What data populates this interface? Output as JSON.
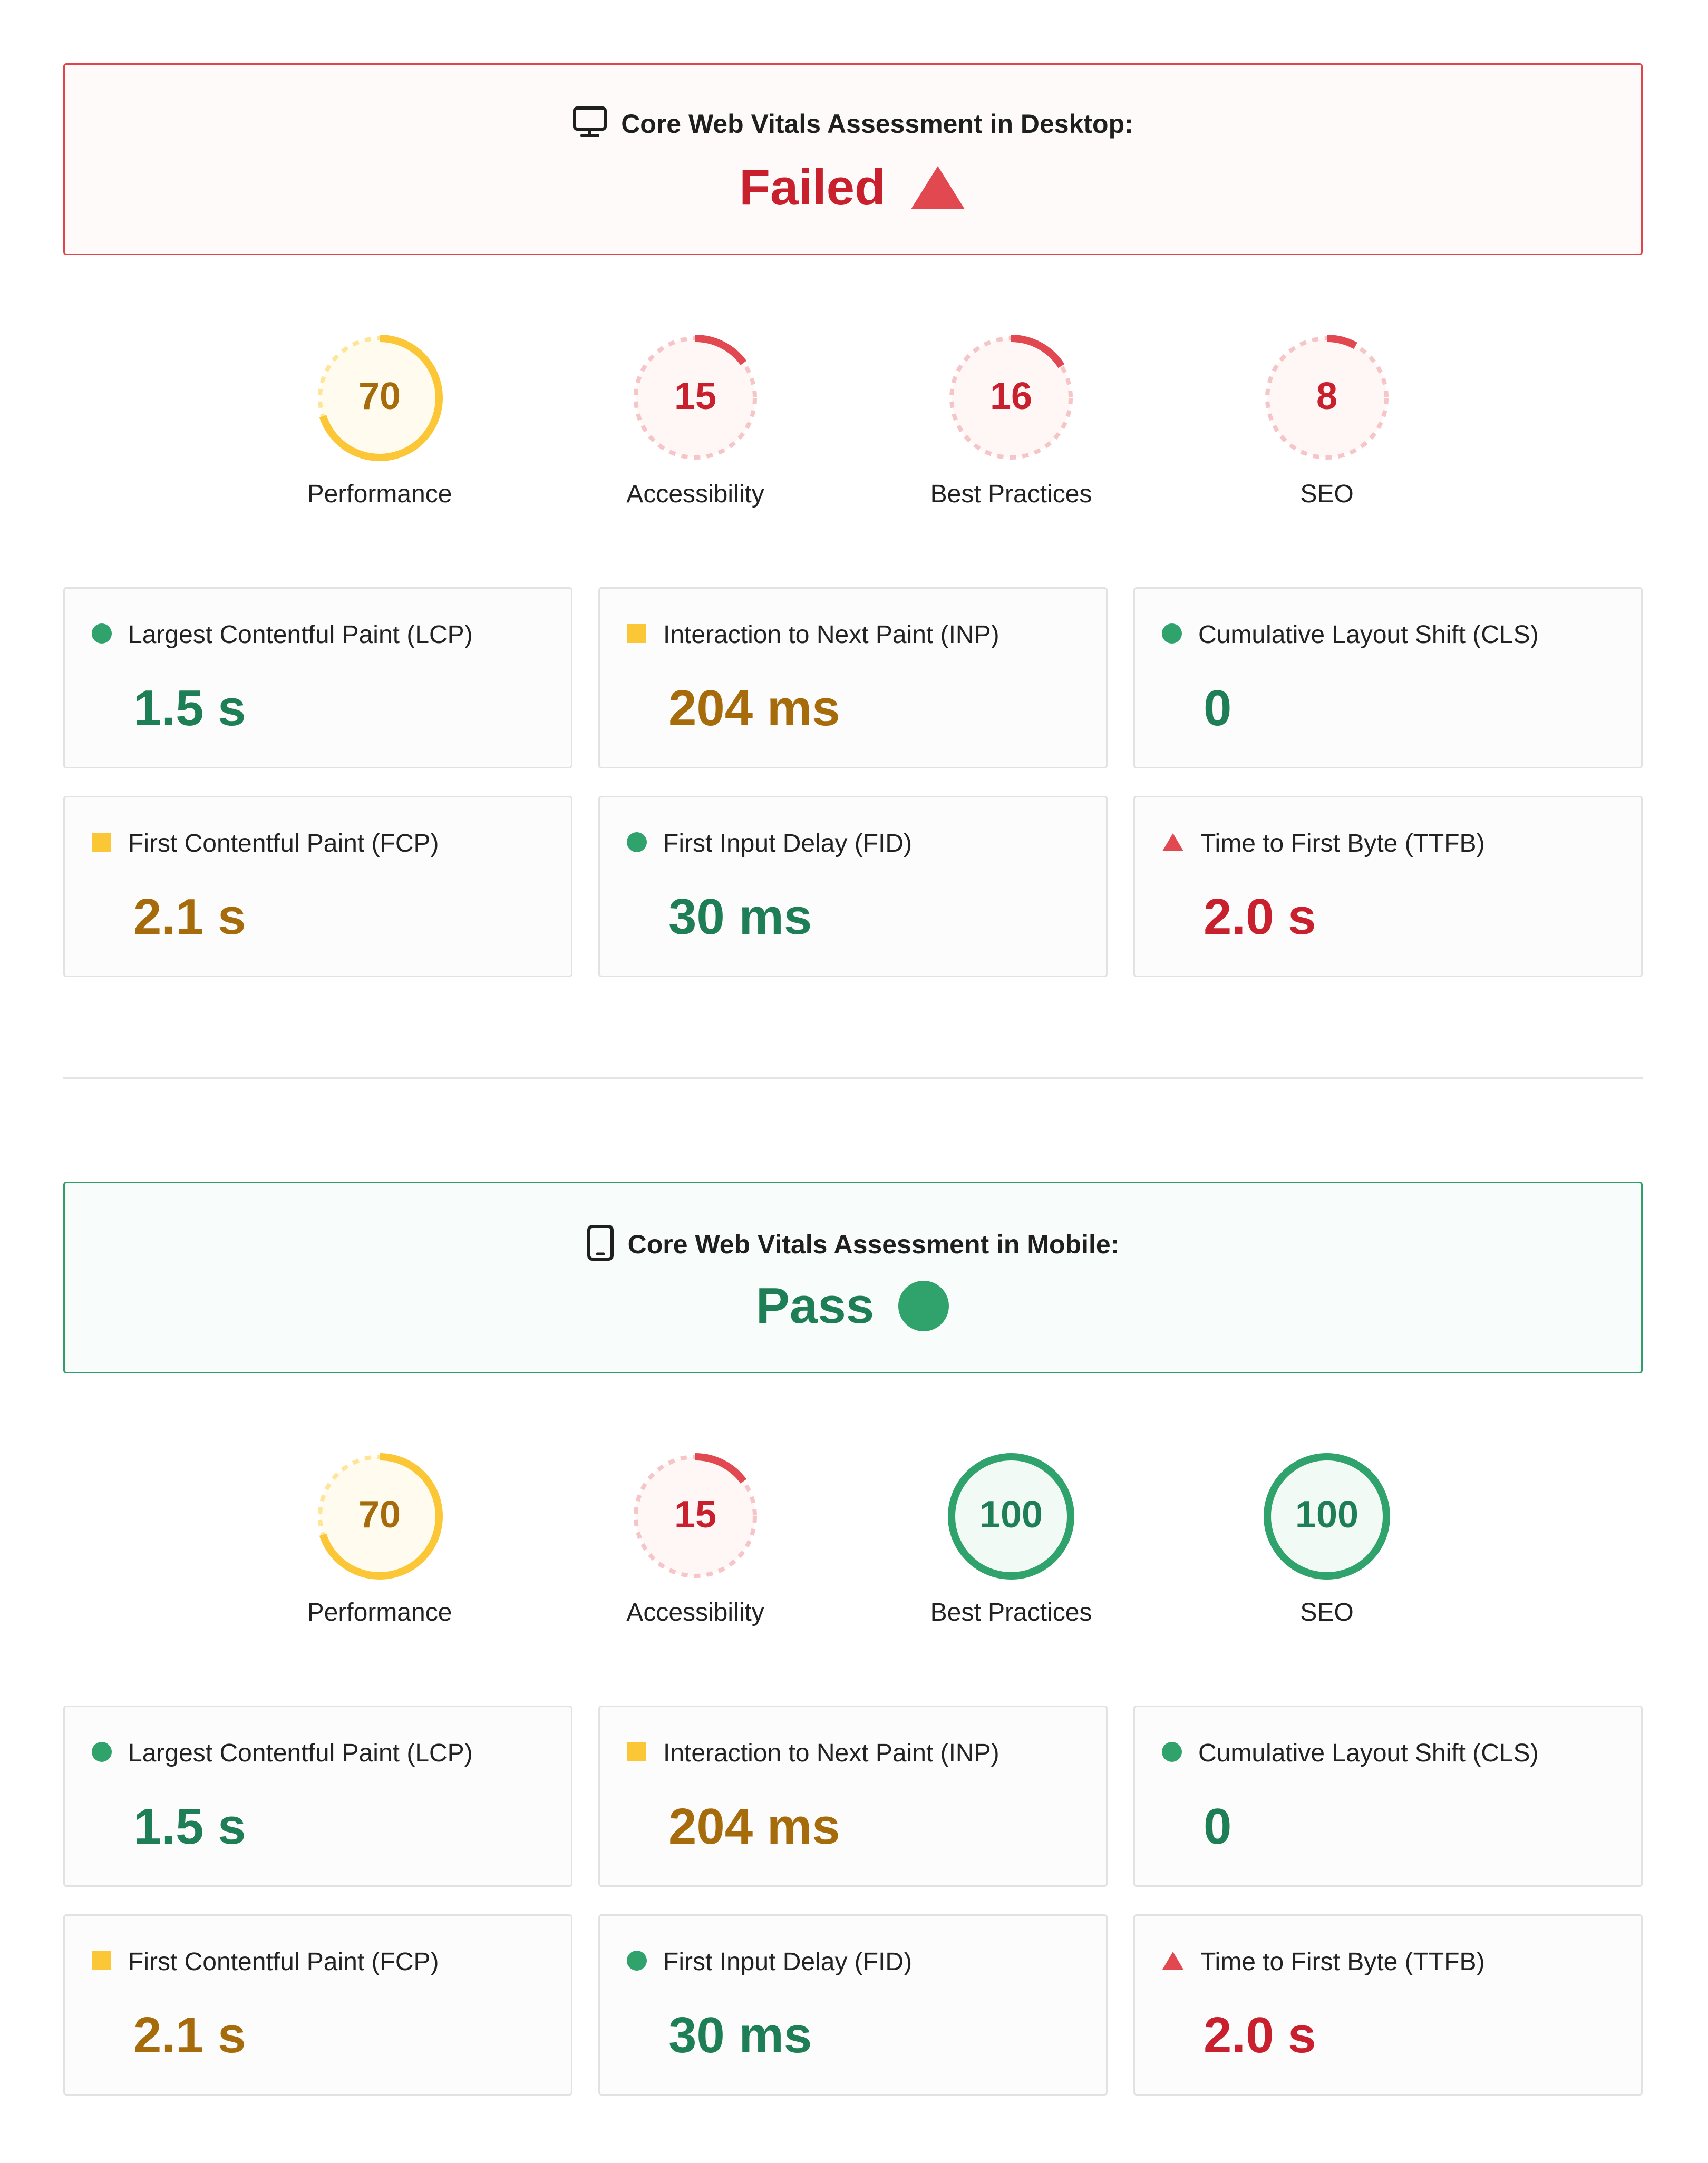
{
  "colors": {
    "good": "#1e7e56",
    "good_dot": "#2fa36b",
    "average": "#a66b0a",
    "average_dot": "#fcc737",
    "poor": "#c8202d",
    "poor_dot": "#e2484f"
  },
  "desktop": {
    "icon": "monitor-icon",
    "title": "Core Web Vitals Assessment in Desktop:",
    "status": "Failed",
    "status_kind": "fail",
    "scores": [
      {
        "value": 70,
        "text": "70",
        "label": "Performance",
        "rating": "average"
      },
      {
        "value": 15,
        "text": "15",
        "label": "Accessibility",
        "rating": "poor"
      },
      {
        "value": 16,
        "text": "16",
        "label": "Best Practices",
        "rating": "poor"
      },
      {
        "value": 8,
        "text": "8",
        "label": "SEO",
        "rating": "poor"
      }
    ],
    "metrics": [
      {
        "label": "Largest Contentful Paint (LCP)",
        "value": "1.5 s",
        "rating": "good"
      },
      {
        "label": "Interaction to Next Paint (INP)",
        "value": "204 ms",
        "rating": "average"
      },
      {
        "label": "Cumulative Layout Shift (CLS)",
        "value": "0",
        "rating": "good"
      },
      {
        "label": "First Contentful Paint (FCP)",
        "value": "2.1 s",
        "rating": "average"
      },
      {
        "label": "First Input Delay (FID)",
        "value": "30 ms",
        "rating": "good"
      },
      {
        "label": "Time to First Byte (TTFB)",
        "value": "2.0 s",
        "rating": "poor"
      }
    ]
  },
  "mobile": {
    "icon": "mobile-phone-icon",
    "title": "Core Web Vitals Assessment in Mobile:",
    "status": "Pass",
    "status_kind": "pass",
    "scores": [
      {
        "value": 70,
        "text": "70",
        "label": "Performance",
        "rating": "average"
      },
      {
        "value": 15,
        "text": "15",
        "label": "Accessibility",
        "rating": "poor"
      },
      {
        "value": 100,
        "text": "100",
        "label": "Best Practices",
        "rating": "good"
      },
      {
        "value": 100,
        "text": "100",
        "label": "SEO",
        "rating": "good"
      }
    ],
    "metrics": [
      {
        "label": "Largest Contentful Paint (LCP)",
        "value": "1.5 s",
        "rating": "good"
      },
      {
        "label": "Interaction to Next Paint (INP)",
        "value": "204 ms",
        "rating": "average"
      },
      {
        "label": "Cumulative Layout Shift (CLS)",
        "value": "0",
        "rating": "good"
      },
      {
        "label": "First Contentful Paint (FCP)",
        "value": "2.1 s",
        "rating": "average"
      },
      {
        "label": "First Input Delay (FID)",
        "value": "30 ms",
        "rating": "good"
      },
      {
        "label": "Time to First Byte (TTFB)",
        "value": "2.0 s",
        "rating": "poor"
      }
    ]
  }
}
